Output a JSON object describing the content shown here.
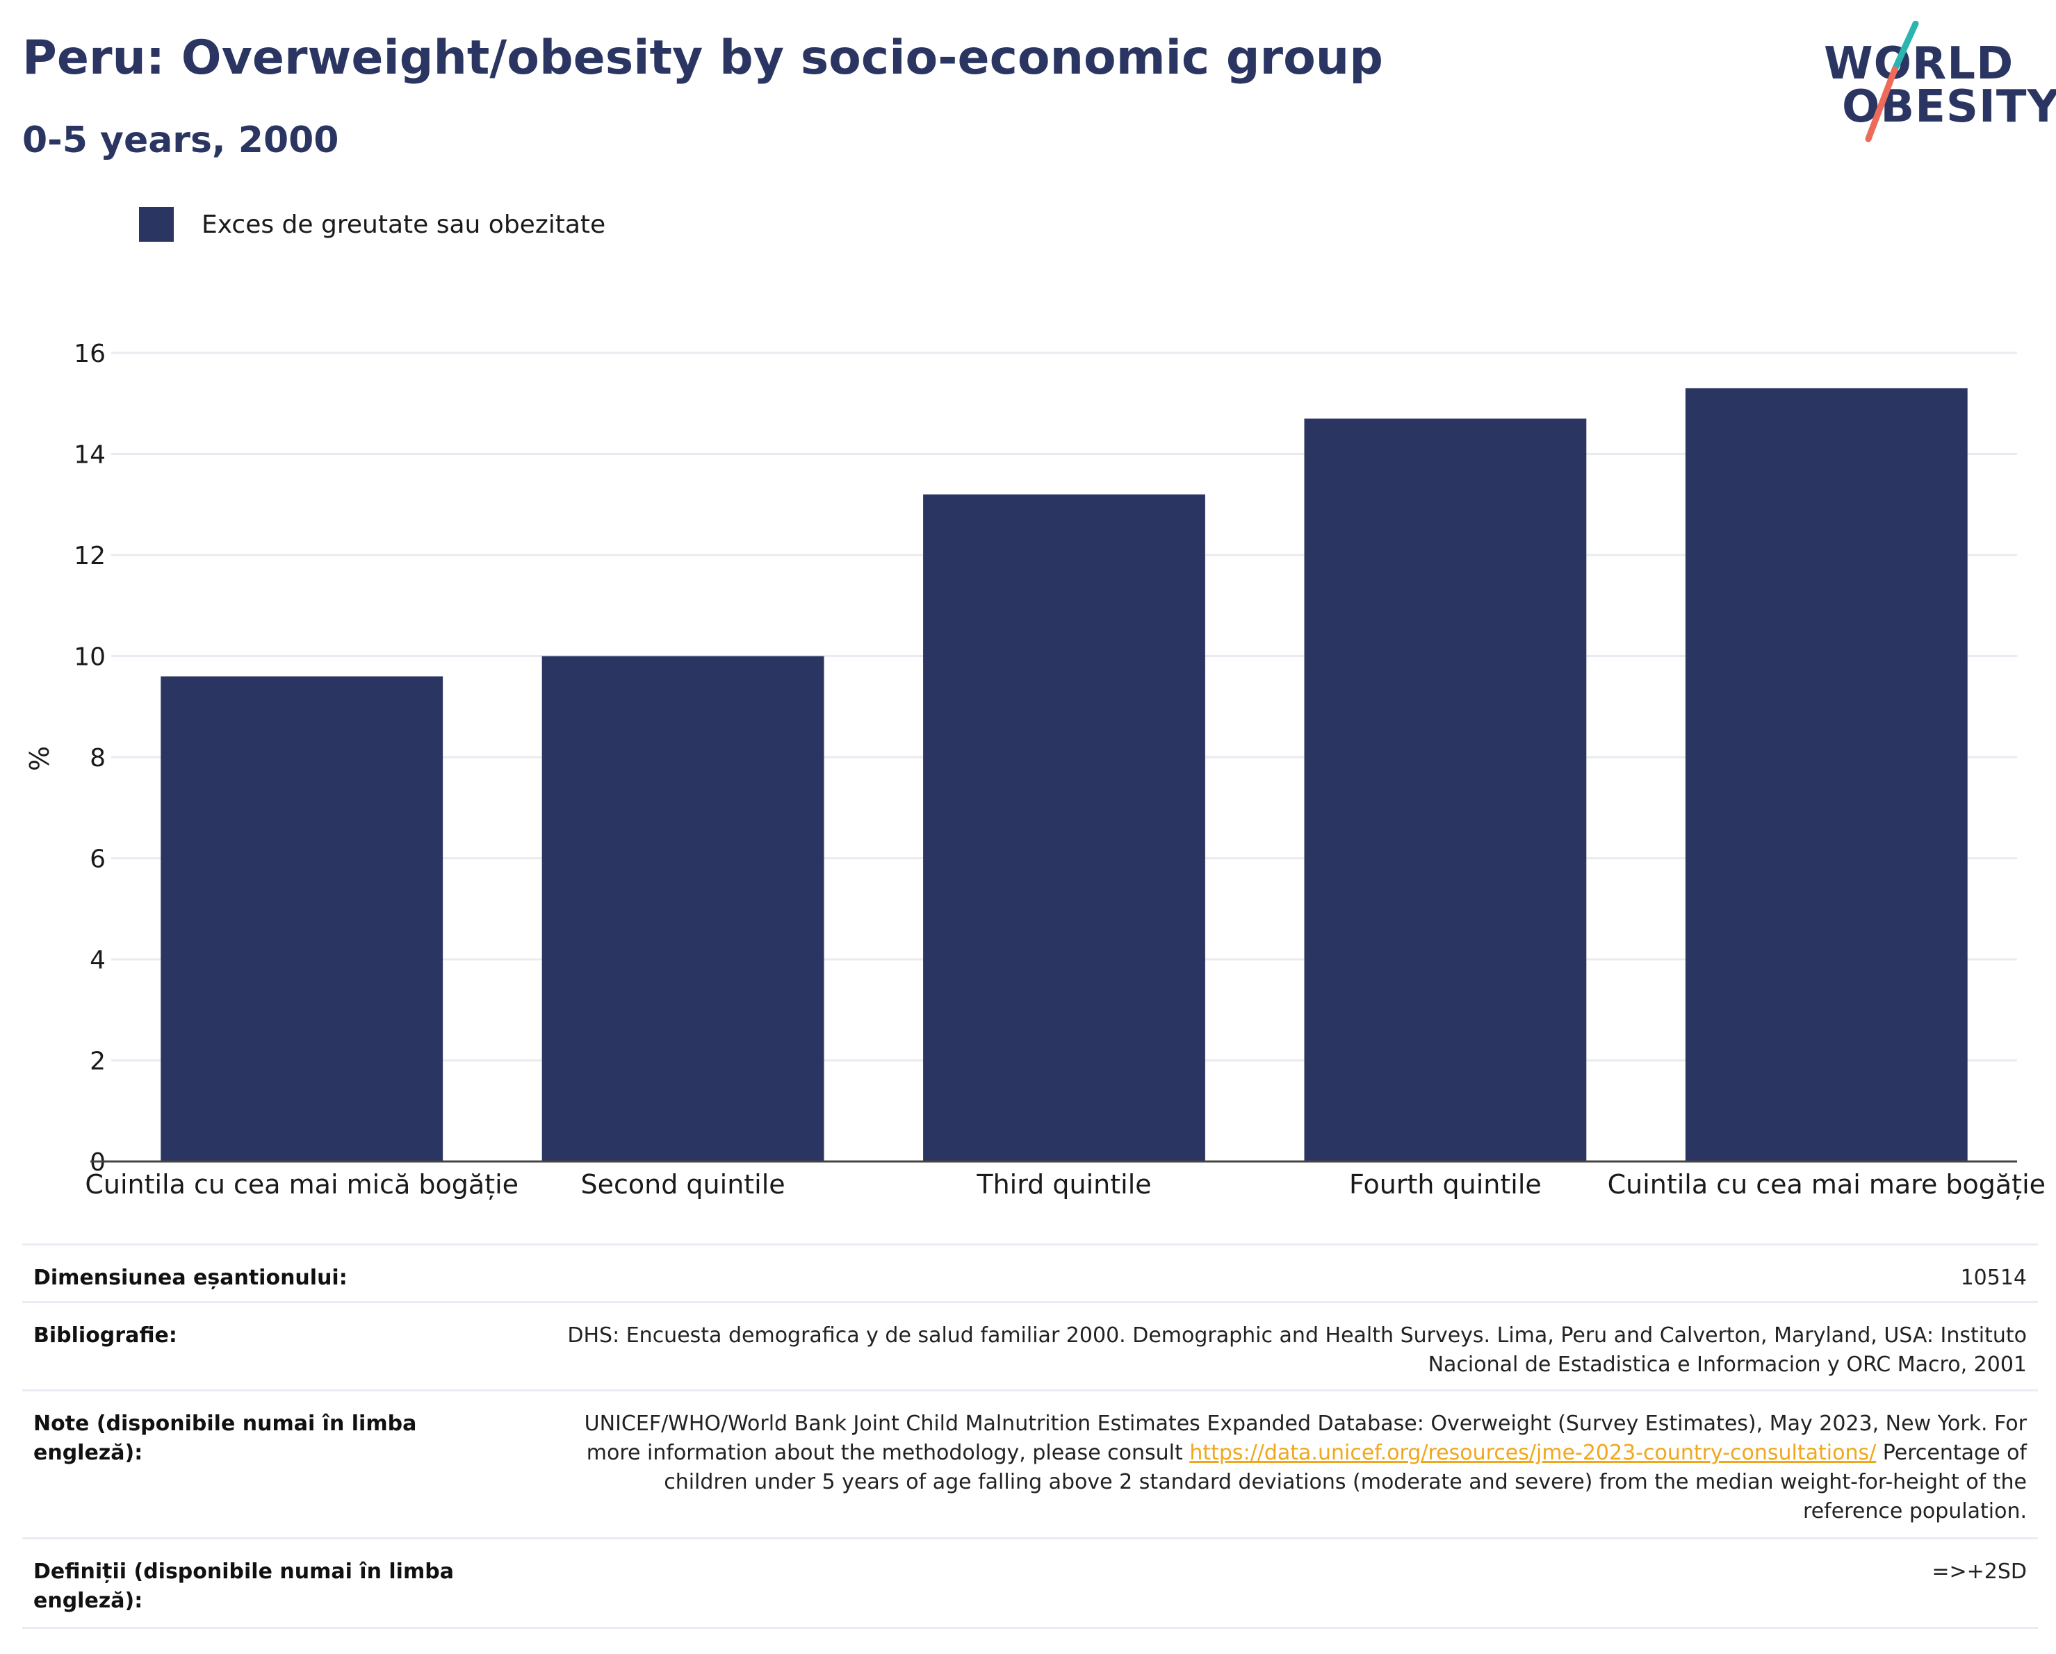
{
  "header": {
    "title": "Peru: Overweight/obesity by socio-economic group",
    "subtitle": "0-5 years, 2000"
  },
  "logo": {
    "line1": "WORLD",
    "line2": "OBESITY",
    "colors": {
      "text": "#2b3562",
      "slash_top": "#2bb5b0",
      "slash_bottom": "#ee6b5a"
    }
  },
  "legend": {
    "label": "Exces de greutate sau obezitate",
    "color": "#2b3562"
  },
  "chart_data": {
    "type": "bar",
    "categories": [
      "Cuintila cu cea mai mică bogăție",
      "Second quintile",
      "Third quintile",
      "Fourth quintile",
      "Cuintila cu cea mai mare bogăție"
    ],
    "series": [
      {
        "name": "Exces de greutate sau obezitate",
        "values": [
          9.6,
          10.0,
          13.2,
          14.7,
          15.3
        ],
        "color": "#2b3562"
      }
    ],
    "ylabel": "%",
    "xlabel": "",
    "ylim": [
      0,
      16
    ],
    "yticks": [
      0,
      2,
      4,
      6,
      8,
      10,
      12,
      14,
      16
    ],
    "grid": true,
    "legend_position": "top-left"
  },
  "table": {
    "sample_size_label": "Dimensiunea eșantionului:",
    "sample_size_value": "10514",
    "bibliography_label": "Bibliografie:",
    "bibliography_value": "DHS: Encuesta demografica y de salud familiar 2000. Demographic and Health Surveys. Lima, Peru and Calverton, Maryland, USA: Instituto Nacional de Estadistica e Informacion y ORC Macro, 2001",
    "notes_label": "Note (disponibile numai în limba engleză):",
    "notes_text_before": "UNICEF/WHO/World Bank Joint Child Malnutrition Estimates Expanded Database: Overweight (Survey Estimates), May 2023, New York. For more information about the methodology, please consult ",
    "notes_link": "https://data.unicef.org/resources/jme-2023-country-consultations/",
    "notes_text_after": " Percentage of children under 5 years of age falling above 2 standard deviations (moderate and severe) from the median weight-for-height of the reference population.",
    "definitions_label": "Definiții (disponibile numai în limba engleză):",
    "definitions_value": "=>+2SD"
  }
}
